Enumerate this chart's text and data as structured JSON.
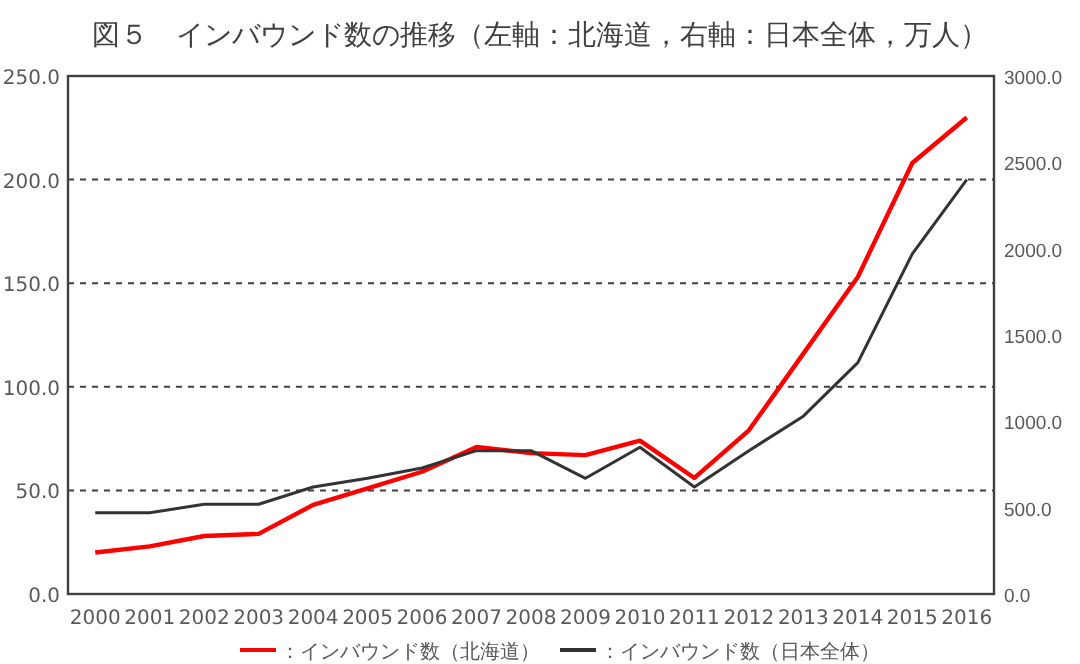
{
  "chart_data": {
    "type": "line",
    "title": "図５　インバウンド数の推移（左軸：北海道，右軸：日本全体，万人）",
    "categories": [
      "2000",
      "2001",
      "2002",
      "2003",
      "2004",
      "2005",
      "2006",
      "2007",
      "2008",
      "2009",
      "2010",
      "2011",
      "2012",
      "2013",
      "2014",
      "2015",
      "2016"
    ],
    "series": [
      {
        "name": "：インバウンド数（北海道）",
        "color": "#ff0000",
        "values": [
          20,
          23,
          28,
          29,
          43,
          51,
          59,
          71,
          68,
          67,
          74,
          56,
          79,
          116,
          153,
          208,
          230
        ]
      },
      {
        "name": "：インバウンド数（日本全体）",
        "color": "#333333",
        "axis": "y2",
        "values": [
          470,
          470,
          520,
          520,
          620,
          670,
          730,
          830,
          830,
          670,
          850,
          620,
          830,
          1030,
          1340,
          1970,
          2400
        ]
      }
    ],
    "ylim": [
      0,
      250
    ],
    "yticks": [
      {
        "value": 0,
        "label": "0.0"
      },
      {
        "value": 50,
        "label": "50.0"
      },
      {
        "value": 100,
        "label": "100.0"
      },
      {
        "value": 150,
        "label": "150.0"
      },
      {
        "value": 200,
        "label": "200.0"
      },
      {
        "value": 250,
        "label": "250.0"
      }
    ],
    "y2lim": [
      0,
      3000
    ],
    "y2ticks": [
      {
        "value": 0,
        "label": "0.0"
      },
      {
        "value": 500,
        "label": "500.0"
      },
      {
        "value": 1000,
        "label": "1000.0"
      },
      {
        "value": 1500,
        "label": "1500.0"
      },
      {
        "value": 2000,
        "label": "2000.0"
      },
      {
        "value": 2500,
        "label": "2500.0"
      },
      {
        "value": 3000,
        "label": "3000.0"
      }
    ],
    "grid": "y",
    "legend": "bottom"
  }
}
